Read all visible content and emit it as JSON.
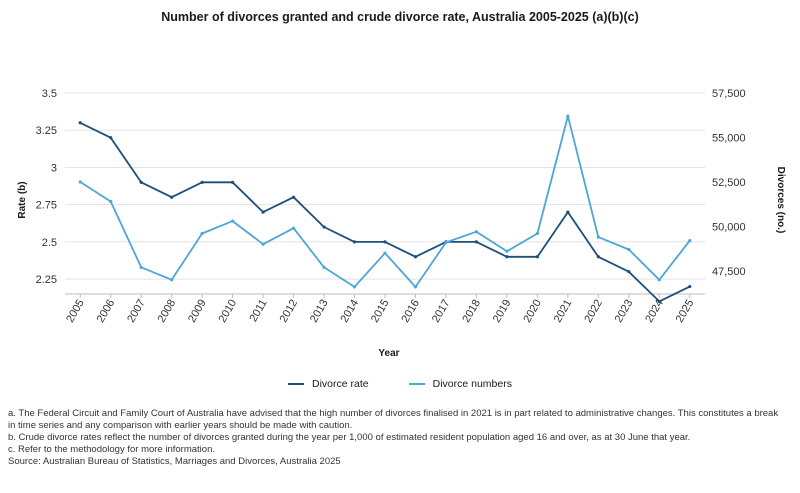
{
  "title": "Number of divorces granted and crude divorce rate, Australia 2005-2025 (a)(b)(c)",
  "chart_data": {
    "type": "line",
    "title": "Number of divorces granted and crude divorce rate, Australia 2005-2025 (a)(b)(c)",
    "xlabel": "Year",
    "ylabel_left": "Rate (b)",
    "ylabel_right": "Divorces (no.)",
    "categories": [
      "2005",
      "2006",
      "2007",
      "2008",
      "2009",
      "2010",
      "2011",
      "2012",
      "2013",
      "2014",
      "2015",
      "2016",
      "2017",
      "2018",
      "2019",
      "2020",
      "2021",
      "2022",
      "2023",
      "2024",
      "2025"
    ],
    "ylim_left": [
      2.15,
      3.5
    ],
    "ylim_right": [
      46200,
      57500
    ],
    "yticks_left": [
      2.25,
      2.5,
      2.75,
      3,
      3.25,
      3.5
    ],
    "yticks_left_labels": [
      "2.25",
      "2.5",
      "2.75",
      "3",
      "3.25",
      "3.5"
    ],
    "yticks_right": [
      47500,
      50000,
      52500,
      55000,
      57500
    ],
    "yticks_right_labels": [
      "47,500",
      "50,000",
      "52,500",
      "55,000",
      "57,500"
    ],
    "grid": true,
    "legend_position": "bottom",
    "series": [
      {
        "name": "Divorce rate",
        "axis": "left",
        "color": "#1f4e79",
        "values": [
          3.3,
          3.2,
          2.9,
          2.8,
          2.9,
          2.9,
          2.7,
          2.8,
          2.6,
          2.5,
          2.5,
          2.4,
          2.5,
          2.5,
          2.4,
          2.4,
          2.7,
          2.4,
          2.3,
          2.1,
          2.2
        ]
      },
      {
        "name": "Divorce numbers",
        "axis": "right",
        "color": "#4ea6d6",
        "values": [
          52500,
          51400,
          47700,
          47000,
          49600,
          50300,
          49000,
          49900,
          47700,
          46600,
          48500,
          46600,
          49100,
          49700,
          48600,
          49600,
          56200,
          49400,
          48700,
          47000,
          49200
        ]
      }
    ]
  },
  "notes": [
    "a. The Federal Circuit and Family Court of Australia have advised that the high number of divorces finalised in 2021 is in part related to administrative changes. This constitutes a break in time series and any comparison with earlier years should be made with caution.",
    "b. Crude divorce rates reflect the number of divorces granted during the year per 1,000 of estimated resident population aged 16 and over, as at 30 June that year.",
    "c. Refer to the methodology for more information."
  ],
  "source": "Source: Australian Bureau of Statistics, Marriages and Divorces, Australia 2025"
}
